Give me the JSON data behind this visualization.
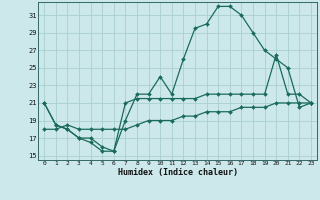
{
  "xlabel": "Humidex (Indice chaleur)",
  "bg_color": "#cce8ea",
  "grid_color": "#aacfcf",
  "line_color": "#1a6b5a",
  "xlim": [
    -0.5,
    23.5
  ],
  "ylim": [
    14.5,
    32.5
  ],
  "xticks": [
    0,
    1,
    2,
    3,
    4,
    5,
    6,
    7,
    8,
    9,
    10,
    11,
    12,
    13,
    14,
    15,
    16,
    17,
    18,
    19,
    20,
    21,
    22,
    23
  ],
  "yticks": [
    15,
    17,
    19,
    21,
    23,
    25,
    27,
    29,
    31
  ],
  "line1_x": [
    0,
    1,
    2,
    3,
    4,
    5,
    6,
    7,
    8,
    9,
    10,
    11,
    12,
    13,
    14,
    15,
    16,
    17,
    18,
    19,
    20,
    21,
    22,
    23
  ],
  "line1_y": [
    21,
    18.5,
    18,
    17,
    16.5,
    15.5,
    15.5,
    19,
    22,
    22,
    24,
    22,
    26,
    29.5,
    30,
    32,
    32,
    31,
    29,
    27,
    26,
    25,
    20.5,
    21
  ],
  "line2_x": [
    0,
    1,
    2,
    3,
    4,
    5,
    6,
    7,
    8,
    9,
    10,
    11,
    12,
    13,
    14,
    15,
    16,
    17,
    18,
    19,
    20,
    21,
    22,
    23
  ],
  "line2_y": [
    21,
    18.5,
    18,
    17,
    17,
    16,
    15.5,
    21,
    21.5,
    21.5,
    21.5,
    21.5,
    21.5,
    21.5,
    22,
    22,
    22,
    22,
    22,
    22,
    26.5,
    22,
    22,
    21
  ],
  "line3_x": [
    0,
    1,
    2,
    3,
    4,
    5,
    6,
    7,
    8,
    9,
    10,
    11,
    12,
    13,
    14,
    15,
    16,
    17,
    18,
    19,
    20,
    21,
    22,
    23
  ],
  "line3_y": [
    18,
    18,
    18.5,
    18,
    18,
    18,
    18,
    18,
    18.5,
    19,
    19,
    19,
    19.5,
    19.5,
    20,
    20,
    20,
    20.5,
    20.5,
    20.5,
    21,
    21,
    21,
    21
  ]
}
